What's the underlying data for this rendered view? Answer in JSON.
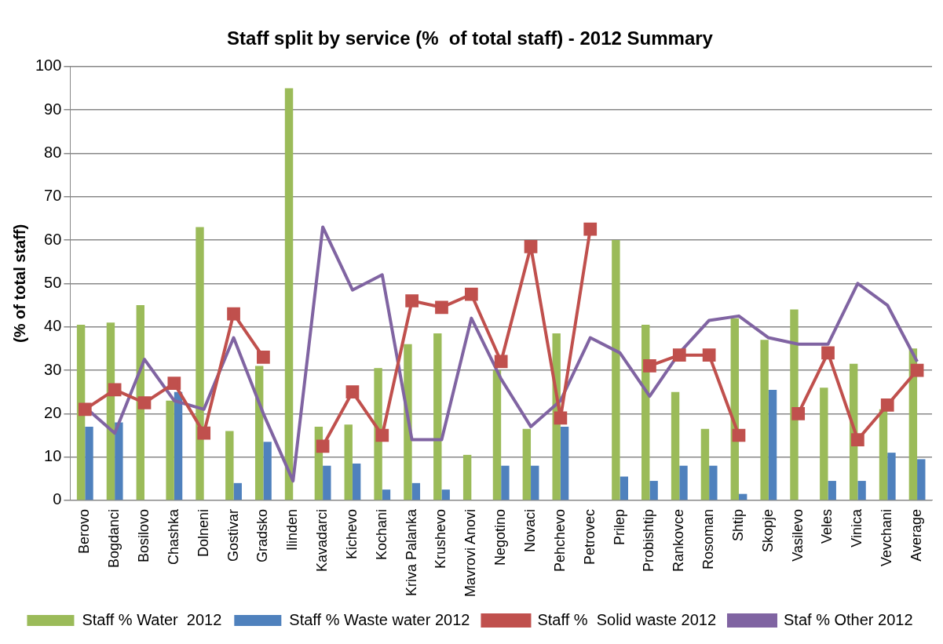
{
  "chart_data": {
    "type": "bar",
    "title": "Staff split by service (%  of total staff) - 2012 Summary",
    "ylabel": "(% of total staff)",
    "categories": [
      "Berovo",
      "Bogdanci",
      "Bosilovo",
      "Chashka",
      "Dolneni",
      "Gostivar",
      "Gradsko",
      "Ilinden",
      "Kavadarci",
      "Kichevo",
      "Kochani",
      "Kriva Palanka",
      "Krushevo",
      "Mavrovi Anovi",
      "Negotino",
      "Novaci",
      "Pehchevo",
      "Petrovec",
      "Prilep",
      "Probishtip",
      "Rankovce",
      "Rosoman",
      "Shtip",
      "Skopje",
      "Vasilevo",
      "Veles",
      "Vinica",
      "Vevchani",
      "Average"
    ],
    "series": [
      {
        "name": "Staff % Water  2012",
        "color": "#9bbb59",
        "values": [
          40.5,
          41,
          45,
          23,
          63,
          16,
          31,
          95,
          17,
          17.5,
          30.5,
          36,
          38.5,
          10.5,
          30,
          16.5,
          38.5,
          0,
          60,
          40.5,
          25,
          16.5,
          42,
          37,
          44,
          26,
          31.5,
          21,
          35
        ]
      },
      {
        "name": "Staff % Waste water 2012",
        "color": "#4f81bd",
        "values": [
          17,
          18,
          0,
          25,
          0,
          4,
          13.5,
          0,
          8,
          8.5,
          2.5,
          4,
          2.5,
          0,
          8,
          8,
          17,
          0,
          5.5,
          4.5,
          8,
          8,
          1.5,
          25.5,
          0,
          4.5,
          4.5,
          11,
          9.5
        ]
      },
      {
        "name": "Staff %  Solid waste 2012",
        "type": "line",
        "color": "#c0504d",
        "marker": "square",
        "line_style": "solid",
        "values": [
          21,
          25.5,
          22.5,
          27,
          15.5,
          43,
          33,
          null,
          12.5,
          25,
          15,
          46,
          44.5,
          47.5,
          32,
          58.5,
          19,
          62.5,
          null,
          31,
          33.5,
          33.5,
          15,
          null,
          20,
          34,
          14,
          22,
          30
        ]
      },
      {
        "name": "Staf % Other 2012",
        "type": "line",
        "color": "#8064a2",
        "marker": "none",
        "line_style": "solid",
        "values": [
          21.5,
          15.5,
          32.5,
          23,
          21,
          37.5,
          20,
          4.5,
          63,
          48.5,
          52,
          14,
          14,
          42,
          28,
          17,
          23,
          37.5,
          34,
          24,
          34,
          41.5,
          42.5,
          37.5,
          36,
          36,
          50,
          45,
          32
        ]
      }
    ],
    "ylim": [
      0,
      100
    ],
    "yticks": [
      0,
      10,
      20,
      30,
      40,
      50,
      60,
      70,
      80,
      90,
      100
    ],
    "grid": "y",
    "legend": "bottom"
  }
}
